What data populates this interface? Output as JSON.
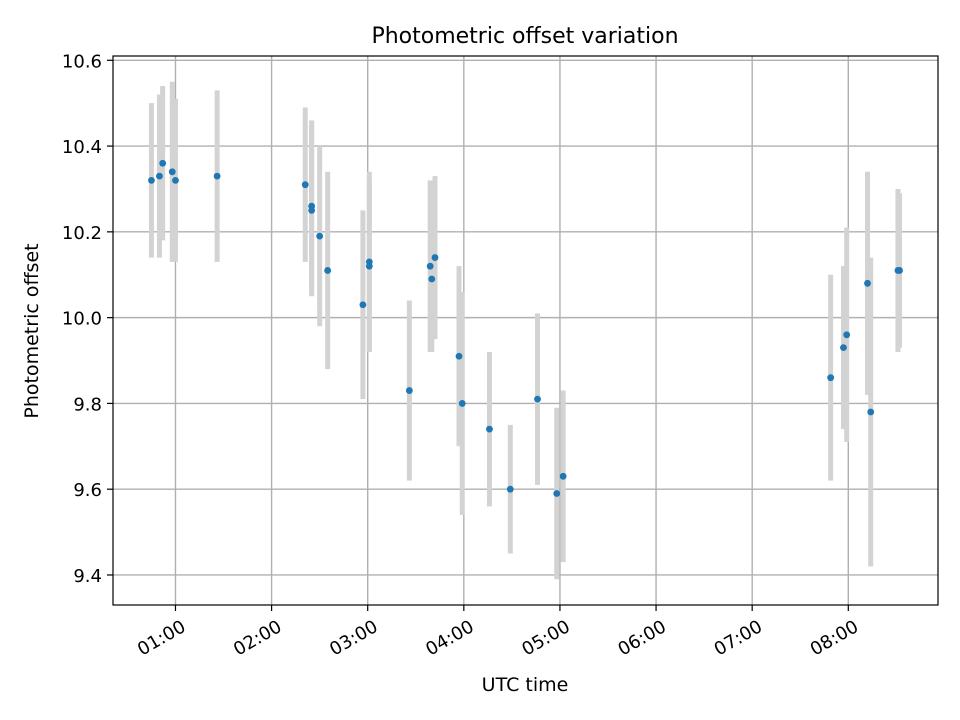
{
  "colors": {
    "point": "#1f77b4",
    "errorbar": "#d3d3d3",
    "grid": "#b0b0b0",
    "axes": "#000000",
    "background": "#ffffff"
  },
  "chart_data": {
    "type": "scatter",
    "title": "Photometric offset variation",
    "xlabel": "UTC time",
    "ylabel": "Photometric offset",
    "xlim": [
      "00:21",
      "08:56"
    ],
    "ylim": [
      9.33,
      10.61
    ],
    "grid": true,
    "legend": "none",
    "x_ticks": [
      "01:00",
      "02:00",
      "03:00",
      "04:00",
      "05:00",
      "06:00",
      "07:00",
      "08:00"
    ],
    "y_ticks": [
      "9.4",
      "9.6",
      "9.8",
      "10.0",
      "10.2",
      "10.4",
      "10.6"
    ],
    "series": [
      {
        "style": "points with vertical error bars",
        "points": [
          {
            "t": "00:45",
            "y": 10.32,
            "err": 0.18
          },
          {
            "t": "00:50",
            "y": 10.33,
            "err": 0.19
          },
          {
            "t": "00:52",
            "y": 10.36,
            "err": 0.18
          },
          {
            "t": "00:58",
            "y": 10.34,
            "err": 0.21
          },
          {
            "t": "01:00",
            "y": 10.32,
            "err": 0.19
          },
          {
            "t": "01:26",
            "y": 10.33,
            "err": 0.2
          },
          {
            "t": "02:21",
            "y": 10.31,
            "err": 0.18
          },
          {
            "t": "02:25",
            "y": 10.26,
            "err": 0.2
          },
          {
            "t": "02:25",
            "y": 10.25,
            "err": 0.2
          },
          {
            "t": "02:30",
            "y": 10.19,
            "err": 0.21
          },
          {
            "t": "02:35",
            "y": 10.11,
            "err": 0.23
          },
          {
            "t": "02:57",
            "y": 10.03,
            "err": 0.22
          },
          {
            "t": "03:01",
            "y": 10.13,
            "err": 0.21
          },
          {
            "t": "03:01",
            "y": 10.12,
            "err": 0.2
          },
          {
            "t": "03:26",
            "y": 9.83,
            "err": 0.21
          },
          {
            "t": "03:39",
            "y": 10.12,
            "err": 0.2
          },
          {
            "t": "03:40",
            "y": 10.09,
            "err": 0.17
          },
          {
            "t": "03:42",
            "y": 10.14,
            "err": 0.19
          },
          {
            "t": "03:57",
            "y": 9.91,
            "err": 0.21
          },
          {
            "t": "03:59",
            "y": 9.8,
            "err": 0.26
          },
          {
            "t": "04:16",
            "y": 9.74,
            "err": 0.18
          },
          {
            "t": "04:29",
            "y": 9.6,
            "err": 0.15
          },
          {
            "t": "04:46",
            "y": 9.81,
            "err": 0.2
          },
          {
            "t": "04:58",
            "y": 9.59,
            "err": 0.2
          },
          {
            "t": "05:02",
            "y": 9.63,
            "err": 0.2
          },
          {
            "t": "07:49",
            "y": 9.86,
            "err": 0.24
          },
          {
            "t": "07:57",
            "y": 9.93,
            "err": 0.19
          },
          {
            "t": "07:59",
            "y": 9.96,
            "err": 0.25
          },
          {
            "t": "08:12",
            "y": 10.08,
            "err": 0.26
          },
          {
            "t": "08:14",
            "y": 9.78,
            "err": 0.36
          },
          {
            "t": "08:31",
            "y": 10.11,
            "err": 0.19
          },
          {
            "t": "08:32",
            "y": 10.11,
            "err": 0.18
          }
        ]
      }
    ]
  }
}
